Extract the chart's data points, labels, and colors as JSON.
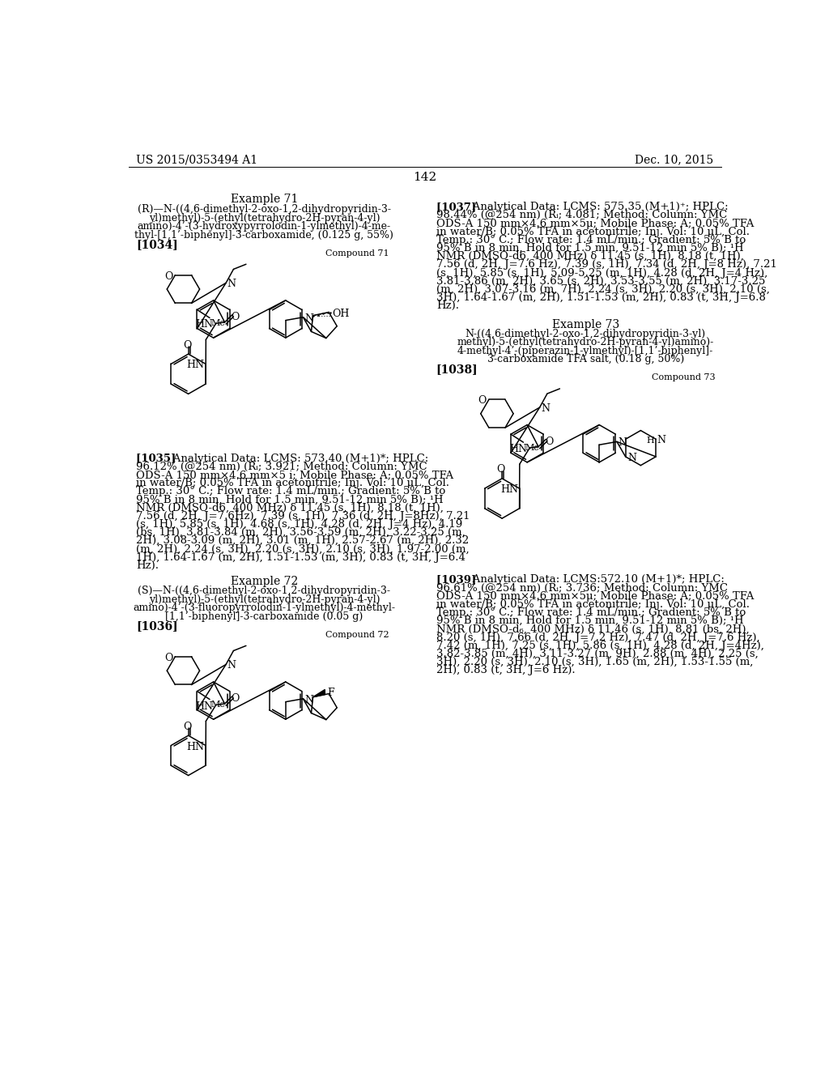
{
  "page_header_left": "US 2015/0353494 A1",
  "page_header_right": "Dec. 10, 2015",
  "page_number": "142",
  "background_color": "#ffffff",
  "example71_title": "Example 71",
  "example71_name_lines": [
    "(R)—N-((4,6-dimethyl-2-oxo-1,2-dihydropyridin-3-",
    "yl)methyl)-5-(ethyl(tetrahydro-2H-pyran-4-yl)",
    "amino)-4’-(3-hydroxypyrrolodin-1-ylmethyl)-4-me-",
    "thyl-[1,1’-biphenyl]-3-carboxamide, (0.125 g, 55%)"
  ],
  "ref1034": "[1034]",
  "compound71_label": "Compound 71",
  "ref1035_lines": [
    "[1035]    Analytical Data: LCMS: 573.40 (M+1)*; HPLC:",
    "96.12% (@254 nm) (Rᵢ; 3.921; Method: Column: YMC",
    "ODS-A 150 mm×4.6 mm×5 i; Mobile Phase: A; 0.05% TFA",
    "in water/B; 0.05% TFA in acetonitrile; Inj. Vol: 10 μL, Col.",
    "Temp.: 30° C.; Flow rate: 1.4 mL/min.; Gradient: 5% B to",
    "95% B in 8 min, Hold for 1.5 min, 9.51-12 min 5% B); ¹H",
    "NMR (DMSO-d6, 400 MHz) δ 11.45 (s, 1H), 8.18 (t, 1H),",
    "7.56 (d, 2H, J=7.6Hz), 7.39 (s, 1H), 7.36 (d, 2H, J=8Hz), 7.21",
    "(s, 1H), 5.85 (s, 1H), 4.68 (s, 1H), 4.28 (d, 2H, J=4 Hz), 4.19",
    "(bs, 1H), 3.81-3.84 (m, 2H), 3.56-3.59 (m, 2H), 3.22-3.25 (m,",
    "2H), 3.08-3.09 (m, 2H), 3.01 (m, 1H), 2.57-2.67 (m, 2H), 2.32",
    "(m, 2H), 2.24 (s, 3H), 2.20 (s, 3H), 2.10 (s, 3H), 1.97-2.00 (m,",
    "1H), 1.64-1.67 (m, 2H), 1.51-1.53 (m, 3H), 0.83 (t, 3H, J=6.4",
    "Hz)."
  ],
  "example72_title": "Example 72",
  "example72_name_lines": [
    "(S)—N-((4,6-dimethyl-2-oxo-1,2-dihydropyridin-3-",
    "yl)methyl)-5-(ethyl(tetrahydro-2H-pyran-4-yl)",
    "amino)-4’-(3-fluoropyrrolodin-1-ylmethyl)-4-methyl-",
    "[1,1’-biphenyl]-3-carboxamide (0.05 g)"
  ],
  "ref1036": "[1036]",
  "compound72_label": "Compound 72",
  "ref1037_lines": [
    "[1037]    Analytical Data: LCMS: 575.35 (M+1)⁺; HPLC:",
    "98.44% (@254 nm) (Rᵢ; 4.081; Method: Column: YMC",
    "ODS-A 150 mm×4.6 mm×5μ; Mobile Phase: A; 0.05% TFA",
    "in water/B; 0.05% TFA in acetonitrile; Inj. Vol: 10 μL, Col.",
    "Temp.: 30° C.; Flow rate: 1.4 mL/min.; Gradient: 5% B to",
    "95% B in 8 min, Hold for 1.5 min, 9.51-12 min 5% B); ¹H",
    "NMR (DMSO-d6, 400 MHz) δ 11.45 (s, 1H), 8.18 (t, 1H),",
    "7.56 (d, 2H, J=7.6 Hz), 7.39 (s, 1H), 7.34 (d, 2H, J=8 Hz), 7.21",
    "(s, 1H), 5.85 (s, 1H), 5.09-5.25 (m, 1H), 4.28 (d, 2H, J=4 Hz),",
    "3.81-3.86 (m, 2H), 3.65 (s, 2H), 3.53-3.55 (m, 2H), 3.17-3.25",
    "(m, 2H), 3.07-3.16 (m, 7H), 2.24 (s, 3H), 2.20 (s, 3H), 2.10 (s,",
    "3H), 1.64-1.67 (m, 2H), 1.51-1.53 (m, 2H), 0.83 (t, 3H, J=6.8",
    "Hz)."
  ],
  "example73_title": "Example 73",
  "example73_name_lines": [
    "N-((4,6-dimethyl-2-oxo-1,2-dihydropyridin-3-yl)",
    "methyl)-5-(ethyl(tetrahydro-2H-pyran-4-yl)amino)-",
    "4-methyl-4’-(piperazin-1-ylmethyl)-[1,1’-biphenyl]-",
    "3-carboxamide TFA salt, (0.18 g, 50%)"
  ],
  "ref1038": "[1038]",
  "compound73_label": "Compound 73",
  "ref1039_lines": [
    "[1039]    Analytical Data: LCMS:572.10 (M+1)*; HPLC:",
    "96.61% (@254 nm) (Rᵢ; 3.736; Method: Column: YMC",
    "ODS-A 150 mm×4.6 mm×5μ; Mobile Phase: A; 0.05% TFA",
    "in water/B; 0.05% TFA in acetonitrile; Inj. Vol: 10 μL, Col.",
    "Temp.: 30° C.; Flow rate: 1.4 mL/min.; Gradient: 5% B to",
    "95% B in 8 min, Hold for 1.5 min, 9.51-12 min 5% B); ¹H",
    "NMR (DMSO-d₆, 400 MHz) δ 11.46 (s, 1H), 8.81 (bs, 2H),",
    "8.20 (s, 1H), 7.66 (d, 2H, J=7.2 Hz), 7.47 (d, 2H, J=7.6 Hz),",
    "7.42 (m, 1H), 7.25 (s, 1H), 5.86 (s, 1H), 4.28 (d, 2H, J=4Hz),",
    "3.82-3.85 (m, 4H), 3.11-3.27 (m, 9H), 2.88 (m, 4H), 2.25 (s,",
    "3H), 2.20 (s, 3H), 2.10 (s, 3H), 1.65 (m, 2H), 1.53-1.55 (m,",
    "2H), 0.83 (t, 3H, J=6 Hz)."
  ]
}
